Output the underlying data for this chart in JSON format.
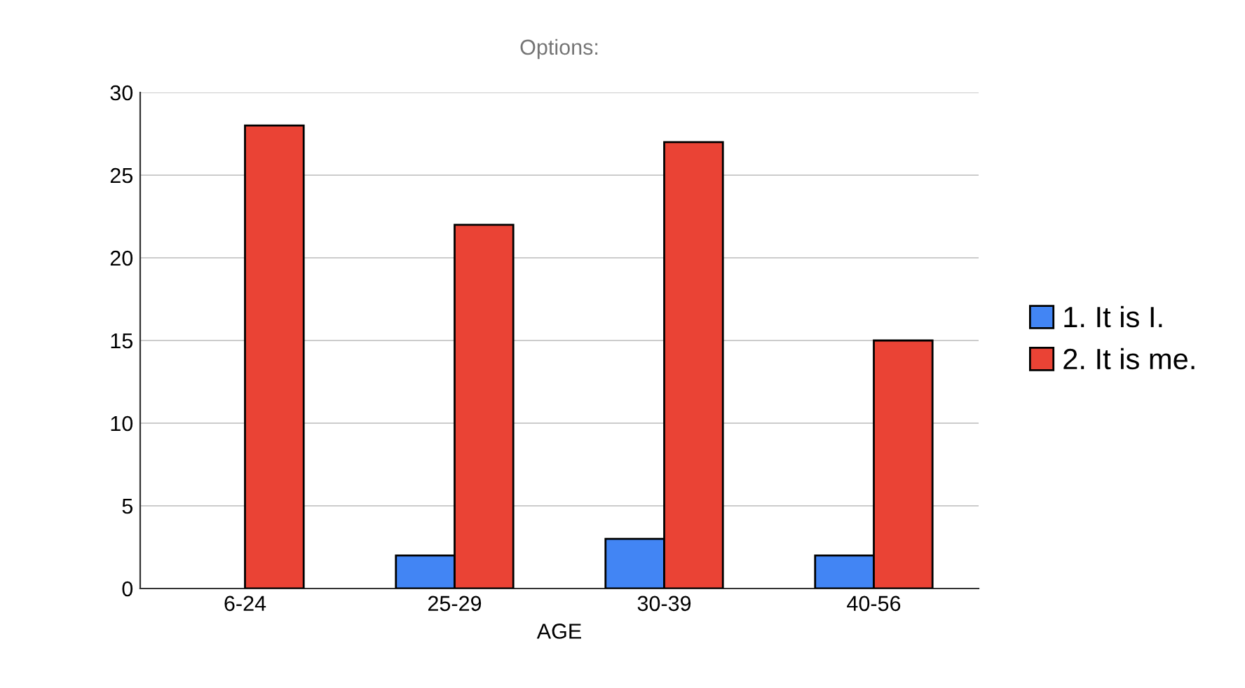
{
  "chart_data": {
    "type": "bar",
    "title": "Options:",
    "xlabel": "AGE",
    "categories": [
      "6-24",
      "25-29",
      "30-39",
      "40-56"
    ],
    "series": [
      {
        "name": "1. It is I.",
        "color": "#4285f4",
        "values": [
          0,
          2,
          3,
          2
        ]
      },
      {
        "name": "2. It is me.",
        "color": "#ea4335",
        "values": [
          28,
          22,
          27,
          15
        ]
      }
    ],
    "ylim": [
      0,
      30
    ],
    "yticks": [
      0,
      5,
      10,
      15,
      20,
      25,
      30
    ],
    "grid": "y",
    "legend": "right"
  }
}
